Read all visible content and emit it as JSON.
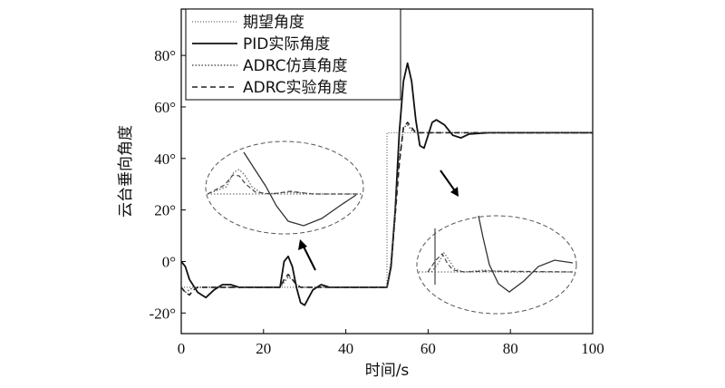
{
  "chart_data": {
    "type": "line",
    "xlabel": "时间/s",
    "ylabel": "云台垂向角度",
    "xlim": [
      0,
      100
    ],
    "ylim": [
      -28,
      98
    ],
    "x_ticks": [
      "0",
      "20",
      "40",
      "60",
      "80",
      "100"
    ],
    "y_ticks": [
      "-20°",
      "0°",
      "20°",
      "40°",
      "60°",
      "80°"
    ],
    "legend_position": "top-right",
    "series": [
      {
        "name": "期望角度",
        "style": "dotted-thin",
        "x": [
          0,
          50,
          50,
          100
        ],
        "y": [
          -10,
          -10,
          50,
          50
        ]
      },
      {
        "name": "PID实际角度",
        "style": "solid",
        "x": [
          0,
          1,
          2,
          4,
          6,
          8,
          10,
          12,
          14,
          16,
          20,
          24,
          25,
          26,
          27,
          28,
          29,
          30,
          31,
          32,
          34,
          36,
          40,
          45,
          50,
          51,
          52,
          53,
          54,
          55,
          56,
          57,
          58,
          59,
          60,
          61,
          62,
          64,
          66,
          68,
          70,
          75,
          80,
          90,
          100
        ],
        "y": [
          0,
          -2,
          -7,
          -12,
          -14,
          -11,
          -9,
          -9,
          -10,
          -10,
          -10,
          -10,
          0,
          2,
          -2,
          -10,
          -16,
          -17,
          -14,
          -11,
          -9,
          -10,
          -10,
          -10,
          -10,
          -2,
          20,
          50,
          70,
          77,
          70,
          55,
          45,
          44,
          49,
          54,
          55,
          53,
          49,
          48,
          49.5,
          50,
          50,
          50,
          50
        ]
      },
      {
        "name": "ADRC仿真角度",
        "style": "dotted",
        "x": [
          0,
          1,
          2,
          3,
          4,
          6,
          10,
          24,
          25,
          26,
          27,
          28,
          29,
          30,
          32,
          35,
          50,
          51,
          52,
          53,
          54,
          55,
          56,
          57,
          58,
          60,
          65,
          70,
          100
        ],
        "y": [
          -10,
          -12,
          -11,
          -10,
          -10,
          -10,
          -10,
          -10,
          -8,
          -6,
          -7,
          -9,
          -10,
          -10,
          -10,
          -10,
          -10,
          0,
          20,
          40,
          52,
          53,
          51,
          50,
          50,
          50,
          50,
          50,
          50
        ]
      },
      {
        "name": "ADRC实验角度",
        "style": "dashed",
        "x": [
          0,
          1,
          2,
          3,
          4,
          6,
          10,
          24,
          25,
          26,
          27,
          28,
          29,
          30,
          32,
          35,
          50,
          51,
          52,
          53,
          54,
          55,
          56,
          57,
          58,
          60,
          65,
          70,
          100
        ],
        "y": [
          -10,
          -12,
          -13,
          -11,
          -10,
          -10,
          -10,
          -10,
          -7,
          -5,
          -7,
          -9,
          -10,
          -10,
          -10,
          -10,
          -10,
          -2,
          18,
          38,
          52,
          54,
          52,
          50,
          50,
          50,
          50,
          50,
          50
        ]
      }
    ]
  }
}
